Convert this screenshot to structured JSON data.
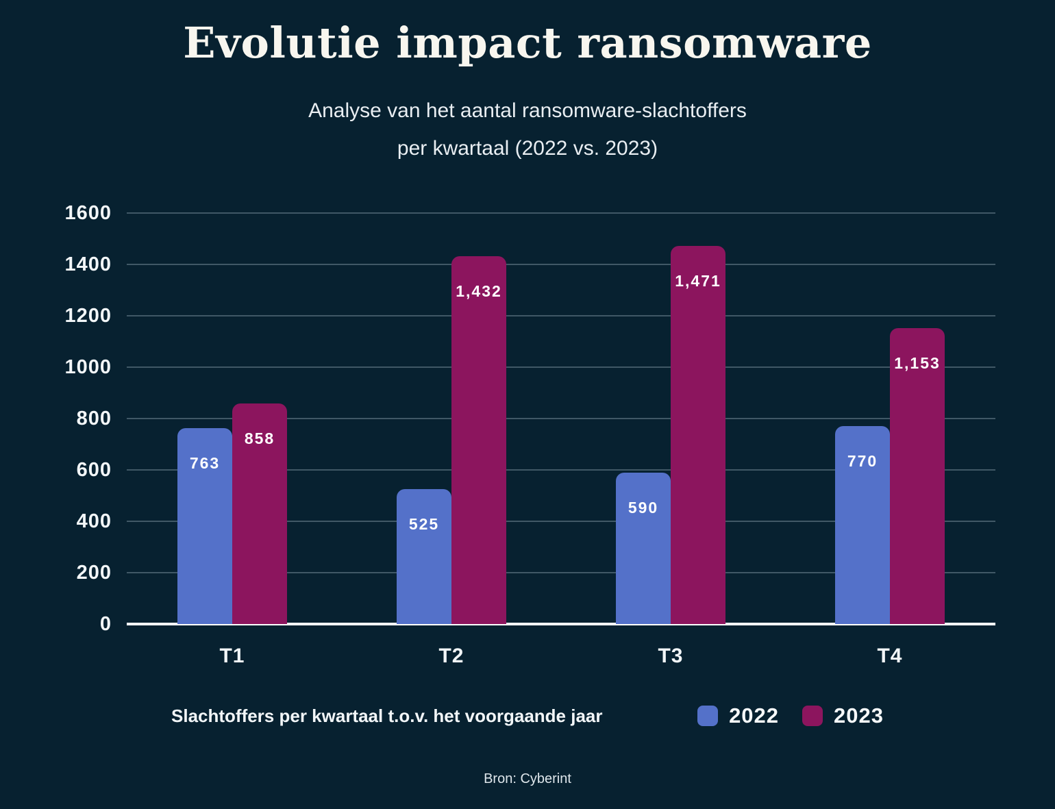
{
  "page": {
    "background": "#072130"
  },
  "title": "Evolutie impact ransomware",
  "subtitle_line1": "Analyse van het aantal ransomware-slachtoffers",
  "subtitle_line2": "per kwartaal (2022 vs. 2023)",
  "legend": {
    "title": "Slachtoffers per kwartaal t.o.v. het voorgaande jaar",
    "items": [
      {
        "label": "2022",
        "color": "#5471C9"
      },
      {
        "label": "2023",
        "color": "#8C155E"
      }
    ]
  },
  "footer": {
    "source": "Bron: Cyberint"
  },
  "chart_data": {
    "type": "bar",
    "title": "Evolutie impact ransomware",
    "subtitle": "Analyse van het aantal ransomware-slachtoffers per kwartaal (2022 vs. 2023)",
    "categories": [
      "T1",
      "T2",
      "T3",
      "T4"
    ],
    "series": [
      {
        "name": "2022",
        "color": "#5471C9",
        "values": [
          763,
          525,
          590,
          770
        ],
        "labels": [
          "763",
          "525",
          "590",
          "770"
        ]
      },
      {
        "name": "2023",
        "color": "#8C155E",
        "values": [
          858,
          1432,
          1471,
          1153
        ],
        "labels": [
          "858",
          "1,432",
          "1,471",
          "1,153"
        ]
      }
    ],
    "xlabel": "",
    "ylabel": "",
    "ylim": [
      0,
      1600
    ],
    "yticks": [
      0,
      200,
      400,
      600,
      800,
      1000,
      1200,
      1400,
      1600
    ],
    "grid": true,
    "legend_title": "Slachtoffers per kwartaal t.o.v. het voorgaande jaar",
    "legend_position": "bottom",
    "source": "Bron: Cyberint",
    "background_color": "#072130",
    "bar_label_color": "#FFFFFF"
  }
}
